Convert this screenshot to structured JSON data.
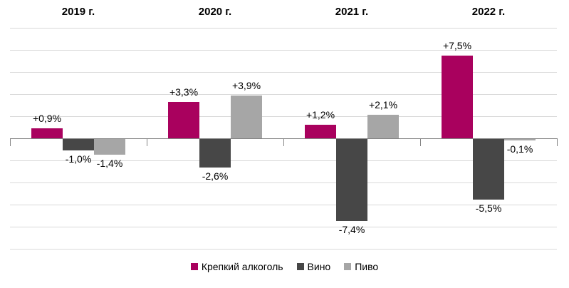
{
  "chart_data": {
    "type": "bar",
    "categories": [
      "2019 г.",
      "2020 г.",
      "2021 г.",
      "2022 г."
    ],
    "series": [
      {
        "name": "Крепкий алкоголь",
        "color": "#a9015e",
        "values": [
          0.9,
          3.3,
          1.2,
          7.5
        ],
        "labels": [
          "+0,9%",
          "+3,3%",
          "+1,2%",
          "+7,5%"
        ]
      },
      {
        "name": "Вино",
        "color": "#474747",
        "values": [
          -1.0,
          -2.6,
          -7.4,
          -5.5
        ],
        "labels": [
          "-1,0%",
          "-2,6%",
          "-7,4%",
          "-5,5%"
        ]
      },
      {
        "name": "Пиво",
        "color": "#a6a6a6",
        "values": [
          -1.4,
          3.9,
          2.1,
          -0.1
        ],
        "labels": [
          "-1,4%",
          "+3,9%",
          "+2,1%",
          "-0,1%"
        ]
      }
    ],
    "title": "",
    "xlabel": "",
    "ylabel": "",
    "ylim": [
      -10,
      10
    ],
    "grid_step": 2,
    "grid": true,
    "legend_position": "bottom",
    "value_suffix": "%"
  },
  "colors": {
    "background": "#ffffff",
    "gridline": "#d9d9d9",
    "axis": "#848484",
    "label_text": "#000000"
  }
}
